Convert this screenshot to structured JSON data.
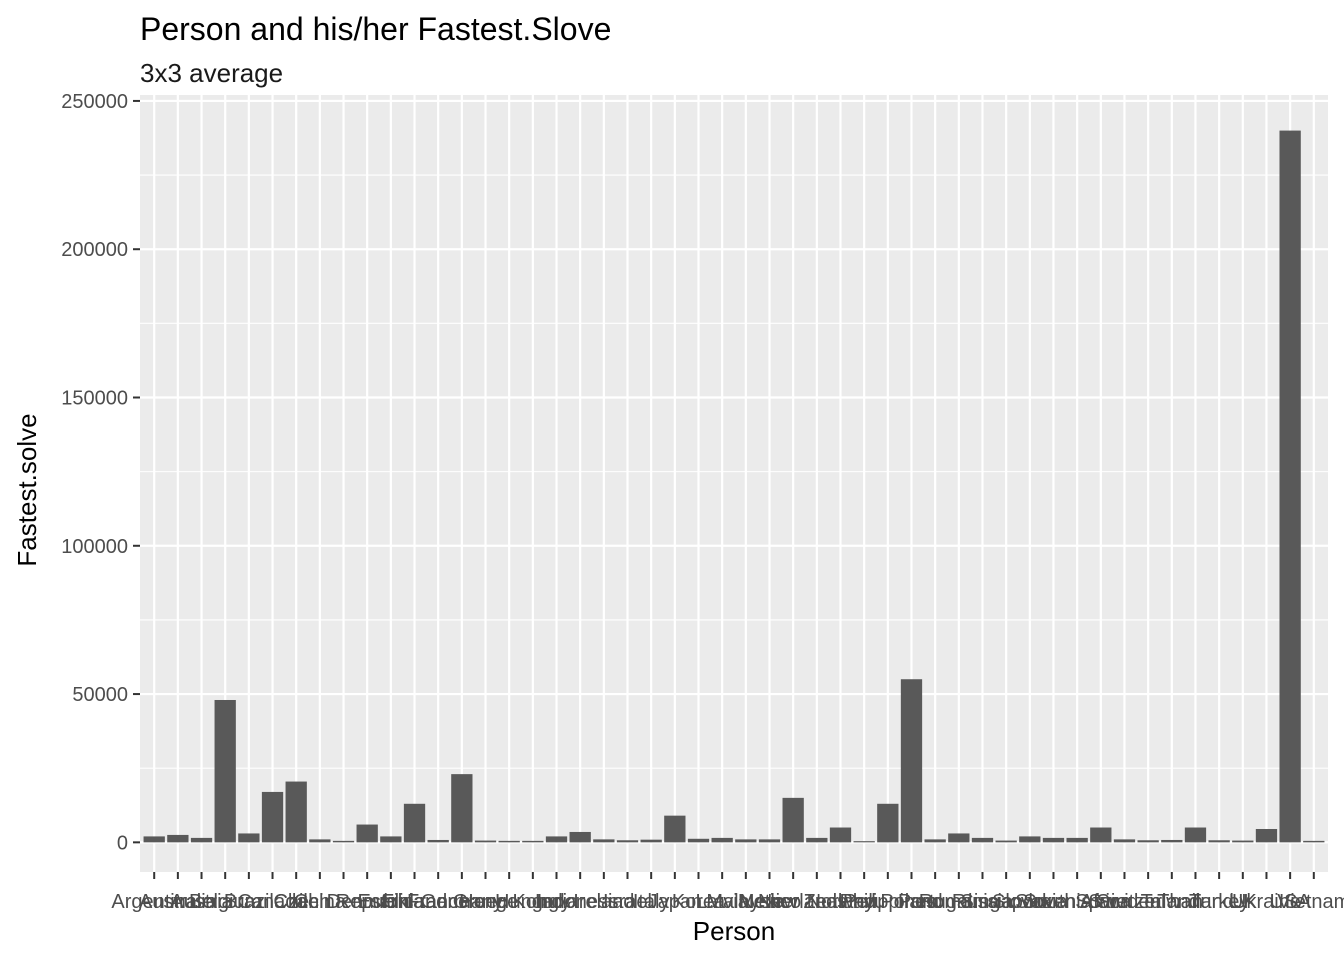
{
  "chart_data": {
    "type": "bar",
    "title": "Person and his/her Fastest.Slove",
    "subtitle": "3x3 average",
    "xlabel": "Person",
    "ylabel": "Fastest.solve",
    "ylim": [
      -10000,
      252000
    ],
    "yticks": [
      0,
      50000,
      100000,
      150000,
      200000,
      250000
    ],
    "ytick_labels": [
      "0",
      "50000",
      "100000",
      "150000",
      "200000",
      "250000"
    ],
    "grid": true,
    "legend": "none",
    "colors": {
      "panel": "#EBEBEB",
      "grid": "#FFFFFF",
      "bar": "#595959",
      "tick": "#333333"
    },
    "categories": [
      "Argentina",
      "Australia",
      "Austria",
      "Belgium",
      "Brazil",
      "Canada",
      "Chile",
      "China",
      "Czech Republic",
      "Denmark",
      "Estonia",
      "Finland",
      "France",
      "Germany",
      "Greece",
      "Hong Kong",
      "Hungary",
      "India",
      "Indonesia",
      "Ireland",
      "Israel",
      "Italy",
      "Japan",
      "Korea",
      "Latvia",
      "Malaysia",
      "Mexico",
      "Netherlands",
      "New Zealand",
      "Norway",
      "Peru",
      "Philippines",
      "Poland",
      "Portugal",
      "Romania",
      "Russia",
      "Singapore",
      "Slovakia",
      "Slovenia",
      "South Africa",
      "Spain",
      "Sweden",
      "Switzerland",
      "Taiwan",
      "Thailand",
      "Turkey",
      "UK",
      "Ukraine",
      "USA",
      "Vietnam"
    ],
    "values": [
      2000,
      2500,
      1500,
      48000,
      3000,
      17000,
      20500,
      1000,
      500,
      6000,
      2000,
      13000,
      800,
      23000,
      600,
      500,
      500,
      2000,
      3500,
      1000,
      700,
      900,
      9000,
      1200,
      1500,
      1000,
      1000,
      15000,
      1500,
      5000,
      400,
      13000,
      55000,
      1000,
      3000,
      1500,
      600,
      2000,
      1500,
      1500,
      5000,
      1000,
      700,
      800,
      5000,
      700,
      600,
      4500,
      240000,
      500
    ]
  }
}
